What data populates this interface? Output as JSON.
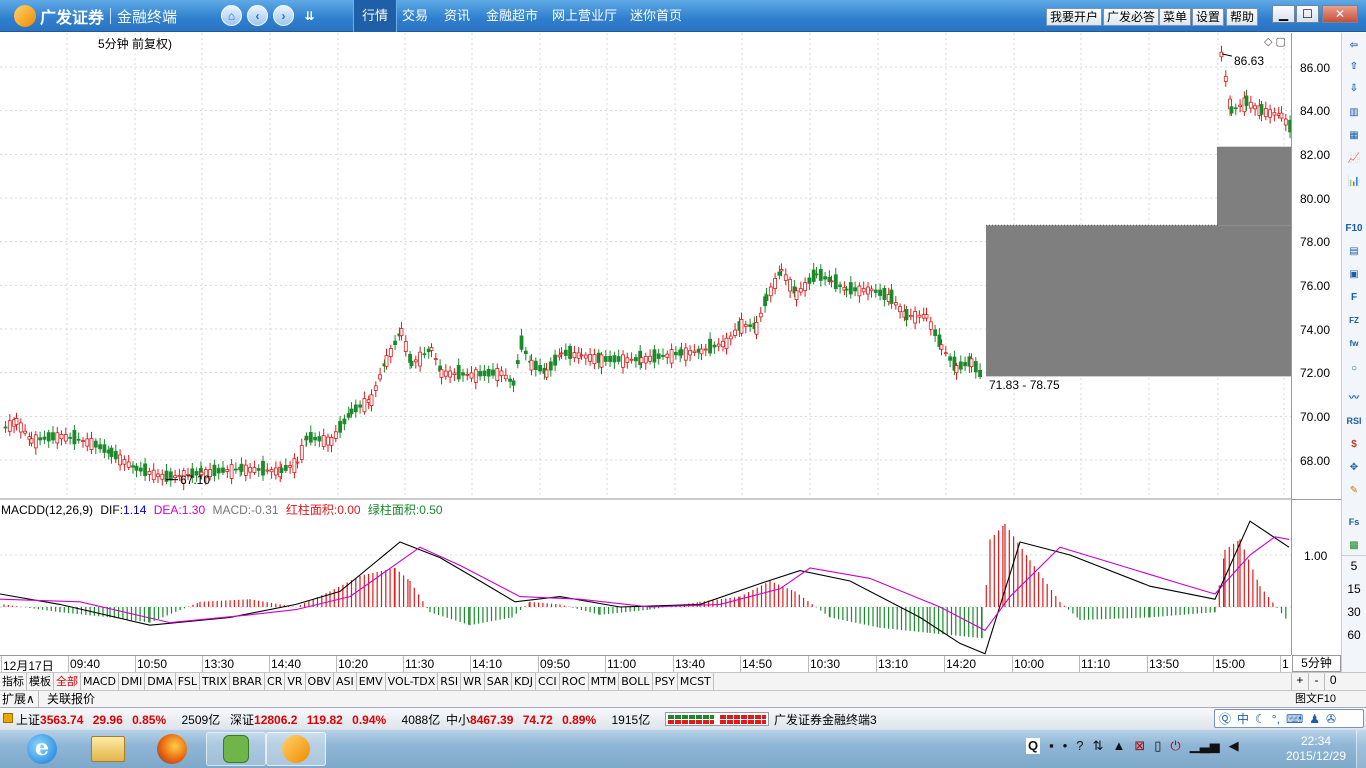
{
  "app": {
    "brand": "广发证券",
    "subtitle": "金融终端",
    "menu_tabs": [
      "行情",
      "交易",
      "资讯",
      "金融超市",
      "网上营业厅",
      "迷你首页"
    ],
    "active_tab": "行情",
    "right_buttons": [
      "我要开户",
      "广发必答",
      "菜单",
      "设置",
      "帮助"
    ],
    "window_buttons": [
      "▁",
      "☐",
      "✕"
    ]
  },
  "chart": {
    "header": "5分钟 前复权)",
    "price_high_label": "86.63",
    "price_low_label": "67.10",
    "gap_label": "71.83 - 78.75",
    "price_ticks": [
      "86.00",
      "84.00",
      "82.00",
      "80.00",
      "78.00",
      "76.00",
      "74.00",
      "72.00",
      "70.00",
      "68.00"
    ],
    "macd_header": {
      "name": "MACDD(12,26,9)",
      "dif_label": "DIF:",
      "dif": "1.14",
      "dea_label": "DEA:",
      "dea": "1.30",
      "macd_label": "MACD:",
      "macd": "-0.31",
      "red_area_label": "红柱面积:",
      "red_area": "0.00",
      "green_area_label": "绿柱面积:",
      "green_area": "0.50"
    },
    "macd_tick": "1.00",
    "time_labels": [
      "12月17日",
      "09:40",
      "10:50",
      "13:30",
      "14:40",
      "10:20",
      "11:30",
      "14:10",
      "09:50",
      "11:00",
      "13:40",
      "14:50",
      "10:30",
      "13:10",
      "14:20",
      "10:00",
      "11:10",
      "13:50",
      "15:00",
      "1"
    ],
    "period_label": "5分钟",
    "period_options": [
      "5",
      "15",
      "30",
      "60"
    ],
    "colors": {
      "up": "#e0191a",
      "down": "#1a8a2a",
      "dif": "#000000",
      "dea": "#cc00cc",
      "gap": "#7f7f7f"
    }
  },
  "indicator_tabs": [
    "指标",
    "模板",
    "全部",
    "MACD",
    "DMI",
    "DMA",
    "FSL",
    "TRIX",
    "BRAR",
    "CR",
    "VR",
    "OBV",
    "ASI",
    "EMV",
    "VOL-TDX",
    "RSI",
    "WR",
    "SAR",
    "KDJ",
    "CCI",
    "ROC",
    "MTM",
    "BOLL",
    "PSY",
    "MCST"
  ],
  "indicator_selected": "全部",
  "ext_tabs": [
    "扩展∧",
    "关联报价"
  ],
  "zoom_buttons": [
    "+",
    "-",
    "0"
  ],
  "right_bottom_label": "图文F10",
  "right_tools": [
    "⇦",
    "⇧",
    "⇩",
    "▥",
    "▦",
    "📈",
    "📊",
    "F10",
    "▤",
    "▣",
    "F",
    "FZ",
    "fw",
    "○",
    "〰",
    "RSI",
    "$",
    "✥",
    "✎",
    "Fs",
    "▩"
  ],
  "status": {
    "sh_label": "上证",
    "sh_value": "3563.74",
    "sh_change": "29.96",
    "sh_pct": "0.85%",
    "sh_vol": "2509亿",
    "sz_label": "深证",
    "sz_value": "12806.2",
    "sz_change": "119.82",
    "sz_pct": "0.94%",
    "sz_vol": "4088亿",
    "zx_label": "中小",
    "zx_value": "8467.39",
    "zx_change": "74.72",
    "zx_pct": "0.89%",
    "zx_vol": "1915亿",
    "app_name": "广发证券金融终端3",
    "ime": "中"
  },
  "taskbar": {
    "time": "22:34",
    "date": "2015/12/29"
  }
}
